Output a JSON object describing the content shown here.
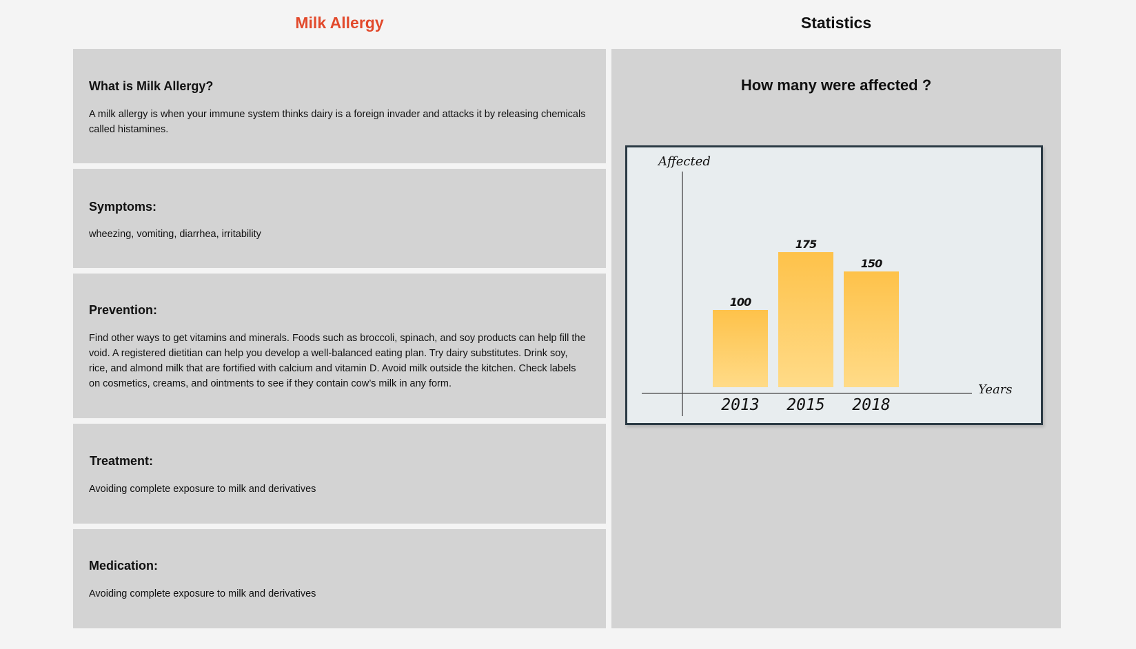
{
  "left_title": "Milk Allergy",
  "right_title": "Statistics",
  "cards": {
    "what": {
      "heading": "What is Milk Allergy?",
      "body": "A milk allergy is when your immune system thinks dairy is a foreign invader and attacks it by releasing chemicals called histamines."
    },
    "symptoms": {
      "heading": "Symptoms:",
      "body": "wheezing, vomiting, diarrhea, irritability"
    },
    "prevention": {
      "heading": "Prevention:",
      "body": "Find other ways to get vitamins and minerals. Foods such as broccoli, spinach, and soy products can help fill the void. A registered dietitian can help you develop a well-balanced eating plan. Try dairy substitutes. Drink soy, rice, and almond milk that are fortified with calcium and vitamin D. Avoid milk outside the kitchen. Check labels on cosmetics, creams, and ointments to see if they contain cow’s milk in any form."
    },
    "treatment": {
      "heading": "Treatment:",
      "body": "Avoiding complete exposure to milk and derivatives"
    },
    "medication": {
      "heading": "Medication:",
      "body": "Avoiding complete exposure to milk and derivatives"
    }
  },
  "stats": {
    "question": "How many were affected ?"
  },
  "colors": {
    "accent": "#e2492b",
    "bar_top": "#fec24a",
    "bar_bottom": "#ffdb88",
    "chart_bg": "#e8edef",
    "card_bg": "#d3d3d3"
  },
  "chart_data": {
    "type": "bar",
    "categories": [
      "2013",
      "2015",
      "2018"
    ],
    "values": [
      100,
      175,
      150
    ],
    "xlabel": "Years",
    "ylabel": "Affected",
    "ylim": [
      0,
      300
    ],
    "grid": false
  }
}
